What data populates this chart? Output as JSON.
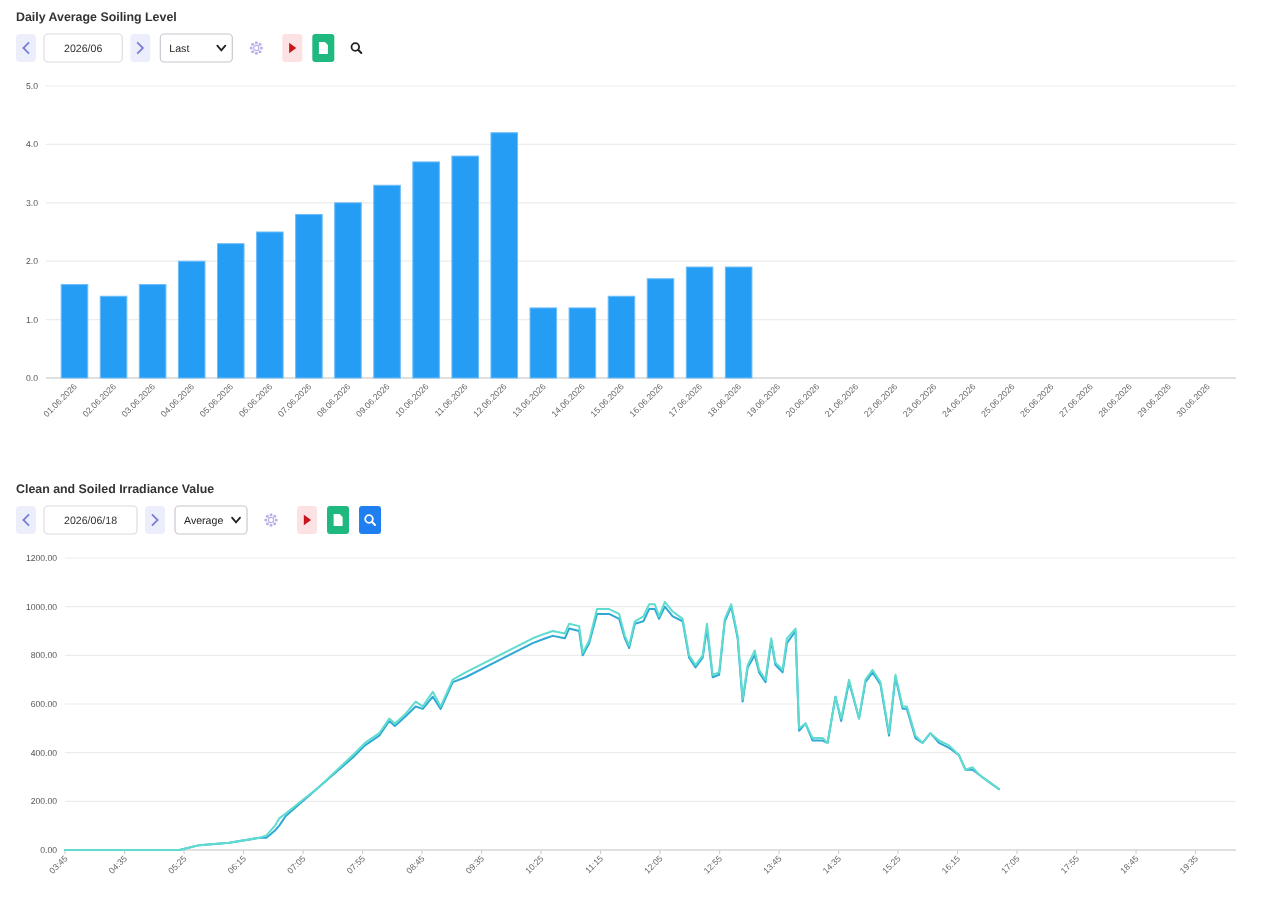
{
  "chart_data": [
    {
      "type": "bar",
      "title": "Daily Average Soiling Level",
      "annotations": [
        "2026/06",
        "Last"
      ],
      "categories": [
        "01.06.2026",
        "02.06.2026",
        "03.06.2026",
        "04.06.2026",
        "05.06.2026",
        "06.06.2026",
        "07.06.2026",
        "08.06.2026",
        "09.06.2026",
        "10.06.2026",
        "11.06.2026",
        "12.06.2026",
        "13.06.2026",
        "14.06.2026",
        "15.06.2026",
        "16.06.2026",
        "17.06.2026",
        "18.06.2026",
        "19.06.2026",
        "20.06.2026",
        "21.06.2026",
        "22.06.2026",
        "23.06.2026",
        "24.06.2026",
        "25.06.2026",
        "26.06.2026",
        "27.06.2026",
        "28.06.2026",
        "29.06.2026",
        "30.06.2026"
      ],
      "values": [
        1.6,
        1.4,
        1.6,
        2.0,
        2.3,
        2.5,
        2.8,
        3.0,
        3.3,
        3.7,
        3.8,
        4.2,
        1.2,
        1.2,
        1.4,
        1.7,
        1.9,
        1.9,
        null,
        null,
        null,
        null,
        null,
        null,
        null,
        null,
        null,
        null,
        null,
        null
      ],
      "color": "#259df5",
      "ylim": [
        0,
        5
      ],
      "yticks": [
        {
          "value": 0,
          "label": "0.0"
        },
        {
          "value": 1,
          "label": "1.0"
        },
        {
          "value": 2,
          "label": "2.0"
        },
        {
          "value": 3,
          "label": "3.0"
        },
        {
          "value": 4,
          "label": "4.0"
        },
        {
          "value": 5,
          "label": "5.0"
        }
      ],
      "grid": "y"
    },
    {
      "type": "line",
      "title": "Clean and Soiled Irradiance Value",
      "annotations": [
        "2026/06/18",
        "Average"
      ],
      "x": [
        3.75,
        5.07,
        5.35,
        5.63,
        6.05,
        6.47,
        6.57,
        6.69,
        6.75,
        6.84,
        7.31,
        7.78,
        7.95,
        8.15,
        8.29,
        8.37,
        8.52,
        8.66,
        8.76,
        8.9,
        9.01,
        9.18,
        9.36,
        9.83,
        10.3,
        10.48,
        10.58,
        10.75,
        10.81,
        10.95,
        11.0,
        11.09,
        11.2,
        11.37,
        11.51,
        11.59,
        11.65,
        11.73,
        11.85,
        11.93,
        12.01,
        12.07,
        12.15,
        12.26,
        12.4,
        12.49,
        12.58,
        12.68,
        12.74,
        12.82,
        12.91,
        12.99,
        13.08,
        13.17,
        13.24,
        13.31,
        13.41,
        13.47,
        13.56,
        13.64,
        13.7,
        13.8,
        13.86,
        13.98,
        14.03,
        14.12,
        14.22,
        14.36,
        14.43,
        14.54,
        14.62,
        14.73,
        14.87,
        14.96,
        15.06,
        15.17,
        15.29,
        15.38,
        15.48,
        15.54,
        15.66,
        15.76,
        15.87,
        15.99,
        16.13,
        16.27,
        16.36,
        16.46,
        16.55,
        16.64,
        16.83
      ],
      "series": [
        {
          "color": "#2ea8d5",
          "values": [
            0,
            0,
            0,
            20,
            30,
            50,
            50,
            80,
            100,
            140,
            260,
            380,
            430,
            470,
            530,
            510,
            550,
            590,
            580,
            630,
            580,
            690,
            710,
            780,
            850,
            870,
            880,
            870,
            910,
            900,
            800,
            850,
            970,
            970,
            950,
            870,
            830,
            930,
            940,
            990,
            990,
            950,
            1000,
            960,
            940,
            790,
            750,
            790,
            910,
            710,
            720,
            940,
            1000,
            870,
            610,
            750,
            800,
            730,
            690,
            860,
            760,
            730,
            850,
            900,
            490,
            520,
            450,
            450,
            440,
            630,
            530,
            690,
            540,
            690,
            730,
            680,
            470,
            710,
            580,
            580,
            460,
            440,
            480,
            440,
            420,
            390,
            330,
            330,
            310,
            290,
            250
          ]
        },
        {
          "color": "#5fdccf",
          "values": [
            0,
            0,
            0,
            20,
            30,
            50,
            60,
            100,
            130,
            150,
            260,
            390,
            440,
            480,
            540,
            520,
            560,
            610,
            590,
            650,
            590,
            700,
            730,
            800,
            870,
            890,
            900,
            890,
            930,
            920,
            810,
            860,
            990,
            990,
            970,
            880,
            840,
            940,
            960,
            1010,
            1010,
            960,
            1020,
            980,
            950,
            800,
            760,
            800,
            930,
            720,
            730,
            950,
            1010,
            880,
            620,
            760,
            820,
            740,
            700,
            870,
            770,
            740,
            870,
            910,
            500,
            520,
            460,
            460,
            440,
            630,
            540,
            700,
            540,
            700,
            740,
            690,
            480,
            720,
            590,
            590,
            470,
            440,
            480,
            450,
            430,
            390,
            330,
            340,
            310,
            290,
            250
          ]
        }
      ],
      "xlim": [
        3.75,
        20.15
      ],
      "xticks": [
        {
          "value": 3.75,
          "label": "03:45"
        },
        {
          "value": 4.5833,
          "label": "04:35"
        },
        {
          "value": 5.4167,
          "label": "05:25"
        },
        {
          "value": 6.25,
          "label": "06:15"
        },
        {
          "value": 7.0833,
          "label": "07:05"
        },
        {
          "value": 7.9167,
          "label": "07:55"
        },
        {
          "value": 8.75,
          "label": "08:45"
        },
        {
          "value": 9.5833,
          "label": "09:35"
        },
        {
          "value": 10.4167,
          "label": "10:25"
        },
        {
          "value": 11.25,
          "label": "11:15"
        },
        {
          "value": 12.0833,
          "label": "12:05"
        },
        {
          "value": 12.9167,
          "label": "12:55"
        },
        {
          "value": 13.75,
          "label": "13:45"
        },
        {
          "value": 14.5833,
          "label": "14:35"
        },
        {
          "value": 15.4167,
          "label": "15:25"
        },
        {
          "value": 16.25,
          "label": "16:15"
        },
        {
          "value": 17.0833,
          "label": "17:05"
        },
        {
          "value": 17.9167,
          "label": "17:55"
        },
        {
          "value": 18.75,
          "label": "18:45"
        },
        {
          "value": 19.5833,
          "label": "19:35"
        }
      ],
      "ylim": [
        0,
        1200
      ],
      "yticks": [
        {
          "value": 0,
          "label": "0.00"
        },
        {
          "value": 200,
          "label": "200.00"
        },
        {
          "value": 400,
          "label": "400.00"
        },
        {
          "value": 600,
          "label": "600.00"
        },
        {
          "value": 800,
          "label": "800.00"
        },
        {
          "value": 1000,
          "label": "1000.00"
        },
        {
          "value": 1200,
          "label": "1200.00"
        }
      ],
      "grid": "y"
    }
  ]
}
